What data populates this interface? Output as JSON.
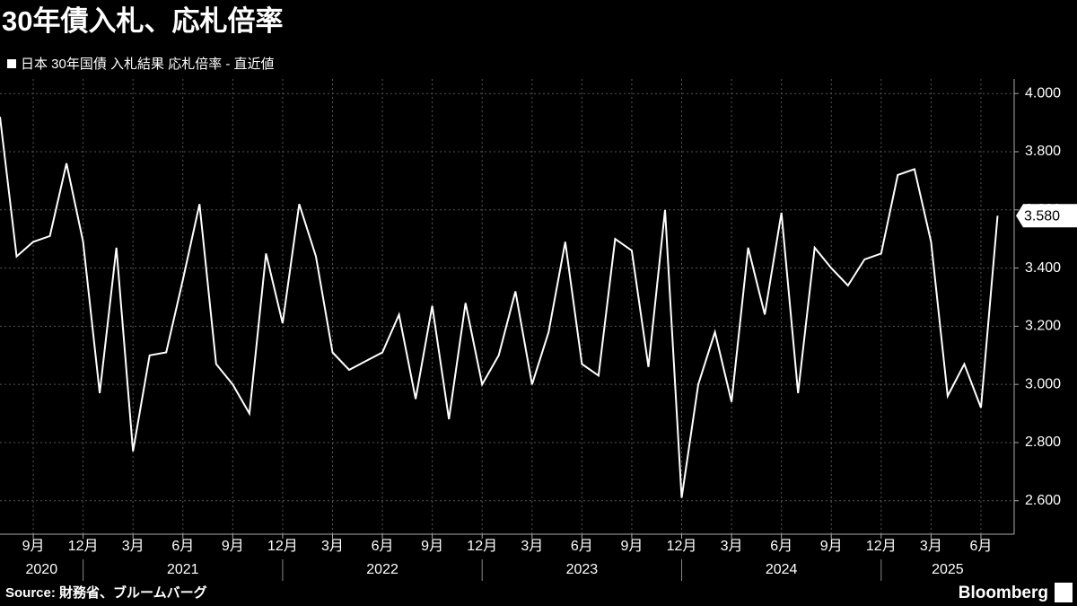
{
  "chart_data": {
    "type": "line",
    "title": "30年債入札、応札倍率",
    "source": "Source: 財務省、ブルームバーグ",
    "brand": "Bloomberg",
    "x": [
      "2020-07",
      "2020-08",
      "2020-09",
      "2020-10",
      "2020-11",
      "2020-12",
      "2021-01",
      "2021-02",
      "2021-03",
      "2021-04",
      "2021-05",
      "2021-06",
      "2021-07",
      "2021-08",
      "2021-09",
      "2021-10",
      "2021-11",
      "2021-12",
      "2022-01",
      "2022-02",
      "2022-03",
      "2022-04",
      "2022-05",
      "2022-06",
      "2022-07",
      "2022-08",
      "2022-09",
      "2022-10",
      "2022-11",
      "2022-12",
      "2023-01",
      "2023-02",
      "2023-03",
      "2023-04",
      "2023-05",
      "2023-06",
      "2023-07",
      "2023-08",
      "2023-09",
      "2023-10",
      "2023-11",
      "2023-12",
      "2024-01",
      "2024-02",
      "2024-03",
      "2024-04",
      "2024-05",
      "2024-06",
      "2024-07",
      "2024-08",
      "2024-09",
      "2024-10",
      "2024-11",
      "2024-12",
      "2025-01",
      "2025-02",
      "2025-03",
      "2025-04",
      "2025-05",
      "2025-06",
      "2025-07"
    ],
    "series": [
      {
        "name": "日本 30年国債 入札結果 応札倍率 - 直近値",
        "color": "#ffffff",
        "values": [
          3.92,
          3.44,
          3.49,
          3.51,
          3.76,
          3.49,
          2.97,
          3.47,
          2.77,
          3.1,
          3.11,
          3.36,
          3.62,
          3.07,
          3.0,
          2.9,
          3.45,
          3.21,
          3.62,
          3.44,
          3.11,
          3.05,
          3.08,
          3.11,
          3.24,
          2.95,
          3.27,
          2.88,
          3.28,
          3.0,
          3.1,
          3.32,
          3.0,
          3.18,
          3.49,
          3.07,
          3.03,
          3.5,
          3.46,
          3.06,
          3.6,
          2.61,
          3.0,
          3.18,
          2.94,
          3.47,
          3.24,
          3.59,
          2.97,
          3.47,
          3.4,
          3.34,
          3.43,
          3.45,
          3.72,
          3.74,
          3.49,
          2.96,
          3.07,
          2.92,
          3.58
        ],
        "value_labels": [
          null,
          null,
          null,
          null,
          null,
          null,
          null,
          null,
          null,
          null,
          null,
          null,
          null,
          null,
          null,
          null,
          null,
          null,
          null,
          null,
          null,
          null,
          null,
          null,
          null,
          null,
          null,
          null,
          null,
          null,
          null,
          null,
          null,
          null,
          null,
          null,
          null,
          null,
          null,
          null,
          null,
          null,
          null,
          null,
          null,
          null,
          null,
          null,
          null,
          null,
          null,
          null,
          null,
          null,
          null,
          null,
          null,
          null,
          null,
          null,
          "3.580"
        ]
      }
    ],
    "xlim": [
      "2020-07",
      "2025-08"
    ],
    "xticks": [
      {
        "value": "2020-09",
        "label": "9月"
      },
      {
        "value": "2020-12",
        "label": "12月"
      },
      {
        "value": "2021-03",
        "label": "3月"
      },
      {
        "value": "2021-06",
        "label": "6月"
      },
      {
        "value": "2021-09",
        "label": "9月"
      },
      {
        "value": "2021-12",
        "label": "12月"
      },
      {
        "value": "2022-03",
        "label": "3月"
      },
      {
        "value": "2022-06",
        "label": "6月"
      },
      {
        "value": "2022-09",
        "label": "9月"
      },
      {
        "value": "2022-12",
        "label": "12月"
      },
      {
        "value": "2023-03",
        "label": "3月"
      },
      {
        "value": "2023-06",
        "label": "6月"
      },
      {
        "value": "2023-09",
        "label": "9月"
      },
      {
        "value": "2023-12",
        "label": "12月"
      },
      {
        "value": "2024-03",
        "label": "3月"
      },
      {
        "value": "2024-06",
        "label": "6月"
      },
      {
        "value": "2024-09",
        "label": "9月"
      },
      {
        "value": "2024-12",
        "label": "12月"
      },
      {
        "value": "2025-03",
        "label": "3月"
      },
      {
        "value": "2025-06",
        "label": "6月"
      }
    ],
    "years": [
      "2020",
      "2021",
      "2022",
      "2023",
      "2024",
      "2025"
    ],
    "ylim": [
      2.485,
      4.05
    ],
    "yticks": [
      {
        "value": 2.6,
        "label": "2.600"
      },
      {
        "value": 2.8,
        "label": "2.800"
      },
      {
        "value": 3.0,
        "label": "3.000"
      },
      {
        "value": 3.2,
        "label": "3.200"
      },
      {
        "value": 3.4,
        "label": "3.400"
      },
      {
        "value": 3.6,
        "label": "3.600"
      },
      {
        "value": 3.8,
        "label": "3.800"
      },
      {
        "value": 4.0,
        "label": "4.000"
      }
    ],
    "grid": true
  }
}
